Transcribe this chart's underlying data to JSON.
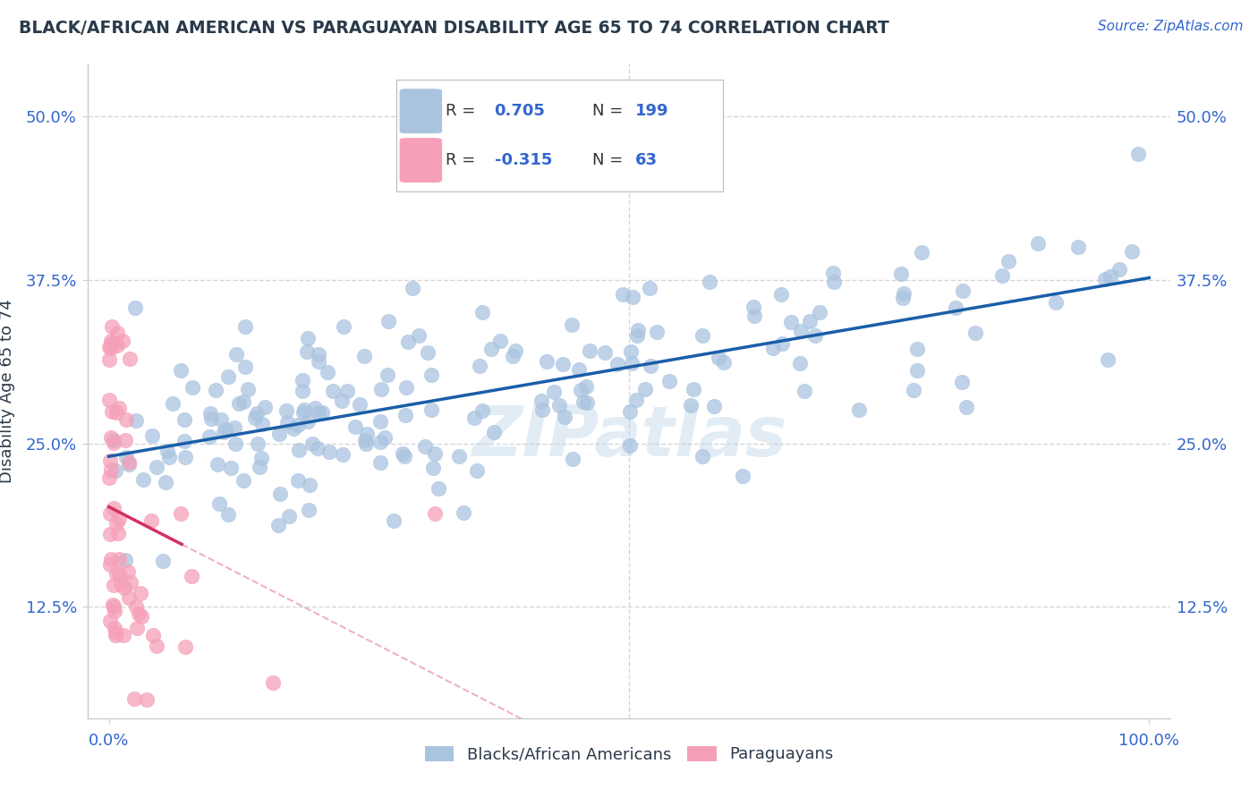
{
  "title": "BLACK/AFRICAN AMERICAN VS PARAGUAYAN DISABILITY AGE 65 TO 74 CORRELATION CHART",
  "source": "Source: ZipAtlas.com",
  "ylabel": "Disability Age 65 to 74",
  "xlim": [
    -0.02,
    1.02
  ],
  "ylim": [
    0.04,
    0.54
  ],
  "ytick_labels": [
    "12.5%",
    "25.0%",
    "37.5%",
    "50.0%"
  ],
  "ytick_values": [
    0.125,
    0.25,
    0.375,
    0.5
  ],
  "xtick_labels": [
    "0.0%",
    "100.0%"
  ],
  "xtick_values": [
    0.0,
    1.0
  ],
  "watermark": "ZIPatlas",
  "legend": {
    "blue_r": 0.705,
    "blue_n": 199,
    "pink_r": -0.315,
    "pink_n": 63
  },
  "blue_color": "#aac4e0",
  "pink_color": "#f5a0b8",
  "blue_line_color": "#1a5ea8",
  "pink_line_color": "#d43060",
  "pink_line_dashed_color": "#e890b0",
  "title_color": "#2a3a4a",
  "axis_color": "#3366cc",
  "grid_color": "#cccccc",
  "background_color": "#ffffff",
  "blue_scatter_seed": 77,
  "pink_scatter_seed": 88
}
